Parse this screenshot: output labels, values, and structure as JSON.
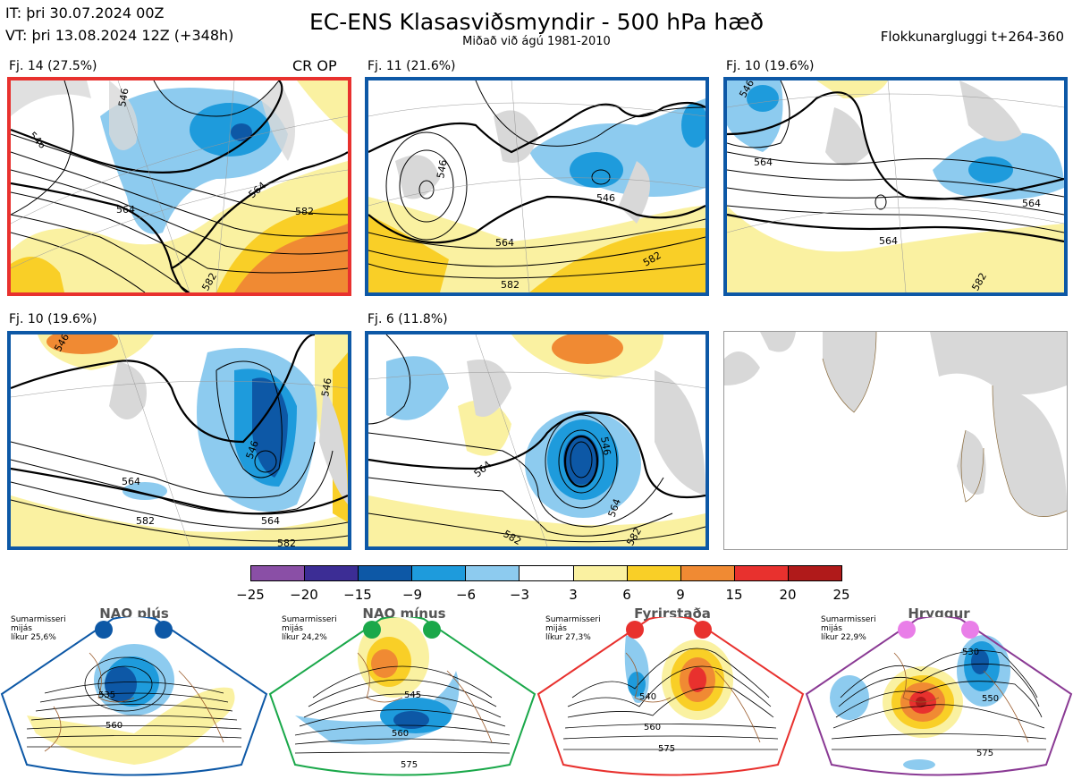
{
  "header": {
    "it_line": "IT: þri 30.07.2024 00Z",
    "vt_line": "VT: þri 13.08.2024 12Z  (+348h)",
    "title": "EC-ENS Klasasviðsmyndir - 500 hPa hæð",
    "subtitle": "Miðað við ágú 1981-2010",
    "window": "Flokkunargluggi t+264-360"
  },
  "panels": [
    {
      "label": "Fj. 14 (27.5%)",
      "tag": "CR OP",
      "border_color": "#e8312e",
      "contours": [
        "546",
        "564",
        "582",
        "546",
        "564",
        "582"
      ]
    },
    {
      "label": "Fj. 11 (21.6%)",
      "tag": "",
      "border_color": "#0d58a6",
      "contours": [
        "546",
        "564",
        "582",
        "546",
        "582"
      ]
    },
    {
      "label": "Fj. 10 (19.6%)",
      "tag": "",
      "border_color": "#0d58a6",
      "contours": [
        "546",
        "564",
        "564",
        "582"
      ]
    },
    {
      "label": "Fj. 10 (19.6%)",
      "tag": "",
      "border_color": "#0d58a6",
      "contours": [
        "546",
        "564",
        "582",
        "546",
        "564",
        "546",
        "582"
      ]
    },
    {
      "label": "Fj. 6 (11.8%)",
      "tag": "",
      "border_color": "#0d58a6",
      "contours": [
        "564",
        "546",
        "582",
        "564",
        "582"
      ]
    }
  ],
  "colorbar": {
    "ticks": [
      "−25",
      "−20",
      "−15",
      "−9",
      "−6",
      "−3",
      "3",
      "6",
      "9",
      "15",
      "20",
      "25"
    ],
    "colors": [
      "#8a4fa6",
      "#3c2d95",
      "#0d58a6",
      "#1e9bdc",
      "#8dcbef",
      "#ffffff",
      "#faf1a1",
      "#f9cf27",
      "#f08a33",
      "#e8312e",
      "#b01a1a"
    ]
  },
  "regimes": [
    {
      "title": "NAO plús",
      "info": [
        "Sumarmisseri",
        "mijás",
        "líkur 25,6%"
      ],
      "dot_color": "#0d58a6",
      "frame_color": "#0d58a6",
      "contours": [
        "535",
        "560"
      ]
    },
    {
      "title": "NAO mínus",
      "info": [
        "Sumarmisseri",
        "mijás",
        "líkur 24,2%"
      ],
      "dot_color": "#1aa84a",
      "frame_color": "#1aa84a",
      "contours": [
        "545",
        "560",
        "575"
      ]
    },
    {
      "title": "Fyrirstaða",
      "info": [
        "Sumarmisseri",
        "mijás",
        "líkur 27,3%"
      ],
      "dot_color": "#e8312e",
      "frame_color": "#e8312e",
      "contours": [
        "540",
        "560",
        "575"
      ]
    },
    {
      "title": "Hryggur",
      "info": [
        "Sumarmisseri",
        "mijás",
        "líkur 22,9%"
      ],
      "dot_color": "#e97ee8",
      "frame_color": "#8a3a94",
      "contours": [
        "530",
        "550",
        "575"
      ]
    }
  ]
}
